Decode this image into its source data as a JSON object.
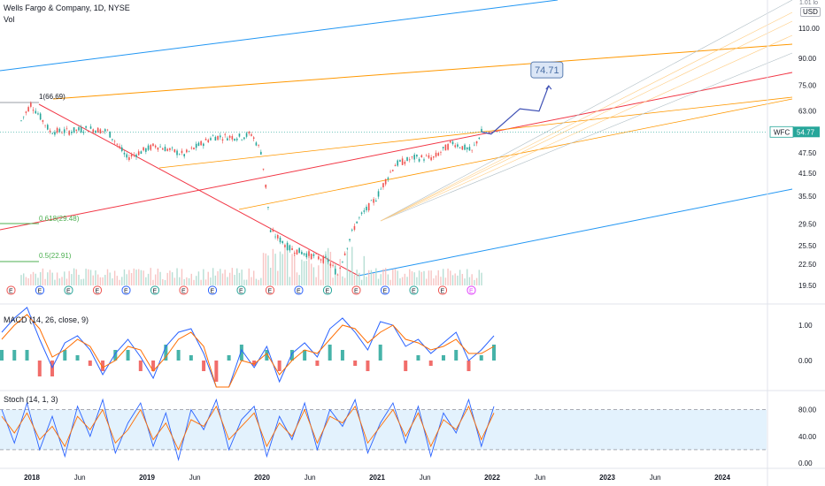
{
  "header": {
    "symbol_title": "Wells Fargo & Company, 1D, NYSE",
    "volume_label": "Vol",
    "log_label": "1.01 lo",
    "currency": "USD"
  },
  "ticker_tag": {
    "symbol": "WFC",
    "price": "54.77"
  },
  "target_label": "74.71",
  "annotations": {
    "peak_fib": "1(66.69)",
    "fib_618": "0.618(29.48)",
    "fib_5": "0.5(22.91)"
  },
  "indicators": {
    "macd_label": "MACD (14, 26, close, 9)",
    "stoch_label": "Stoch (14, 1, 3)"
  },
  "earnings_marker": "E",
  "colors": {
    "up_candle": "#26a69a",
    "down_candle": "#ef5350",
    "macd_line": "#2962ff",
    "signal_line": "#ff6d00",
    "channel_blue": "#2196f3",
    "channel_orange": "#ff9800",
    "channel_red": "#f23645",
    "fib_green": "#4caf50",
    "stoch_band": "#e3f2fd"
  },
  "chart_data": [
    {
      "type": "line",
      "title": "Wells Fargo & Company, 1D, NYSE",
      "scale": "log",
      "y_ticks": [
        "110.00",
        "90.00",
        "75.00",
        "63.00",
        "54.77",
        "47.50",
        "41.50",
        "35.50",
        "29.50",
        "25.50",
        "22.50",
        "19.50"
      ],
      "x_ticks": [
        "2018",
        "Jun",
        "2019",
        "Jun",
        "2020",
        "Jun",
        "2021",
        "Jun",
        "2022",
        "Jun",
        "2023",
        "Jun",
        "2024"
      ],
      "series": [
        {
          "name": "WFC",
          "x": [
            "2018-01",
            "2018-02",
            "2018-04",
            "2018-06",
            "2018-08",
            "2018-10",
            "2018-12",
            "2019-03",
            "2019-06",
            "2019-09",
            "2019-12",
            "2020-01",
            "2020-02",
            "2020-03",
            "2020-05",
            "2020-07",
            "2020-09",
            "2020-10",
            "2020-12",
            "2021-02",
            "2021-04",
            "2021-06",
            "2021-08",
            "2021-10",
            "2021-12",
            "2022-01"
          ],
          "values": [
            59,
            66,
            55,
            55,
            56,
            55,
            46,
            50,
            47,
            53,
            53,
            54,
            48,
            28,
            25,
            24,
            23,
            21,
            30,
            35,
            44,
            46,
            46,
            51,
            48,
            54.77
          ]
        },
        {
          "name": "projection",
          "x": [
            "2022-01",
            "2022-02",
            "2022-05",
            "2022-07",
            "2022-08"
          ],
          "values": [
            54.77,
            54,
            64,
            63,
            74.71
          ]
        }
      ]
    },
    {
      "type": "line",
      "title": "MACD (14, 26, close, 9)",
      "y_ticks": [
        "1.00",
        "0.00"
      ],
      "series": [
        {
          "name": "MACD",
          "values": [
            0.8,
            1.2,
            1.5,
            0.6,
            -0.2,
            0.5,
            0.7,
            0.3,
            -0.4,
            0.2,
            0.6,
            0.1,
            -0.5,
            0.4,
            0.8,
            0.9,
            0.2,
            -1.2,
            -0.8,
            0.3,
            -0.2,
            0.4,
            -0.6,
            0.2,
            0.5,
            0.1,
            0.9,
            1.2,
            0.8,
            0.3,
            1.1,
            1.0,
            0.4,
            0.6,
            0.2,
            0.5,
            0.8,
            0.0,
            0.3,
            0.7
          ]
        },
        {
          "name": "Signal",
          "values": [
            0.6,
            1.0,
            1.3,
            0.9,
            0.1,
            0.3,
            0.6,
            0.4,
            -0.2,
            0.0,
            0.4,
            0.3,
            -0.3,
            0.1,
            0.6,
            0.8,
            0.4,
            -0.8,
            -0.9,
            0.0,
            -0.1,
            0.2,
            -0.4,
            0.0,
            0.3,
            0.2,
            0.6,
            1.0,
            0.9,
            0.5,
            0.8,
            1.0,
            0.6,
            0.5,
            0.3,
            0.4,
            0.6,
            0.2,
            0.2,
            0.4
          ]
        }
      ]
    },
    {
      "type": "line",
      "title": "Stoch (14, 1, 3)",
      "y_ticks": [
        "80.00",
        "40.00",
        "0.00"
      ],
      "series": [
        {
          "name": "%K",
          "values": [
            80,
            30,
            90,
            20,
            70,
            10,
            85,
            40,
            95,
            15,
            60,
            90,
            25,
            75,
            5,
            80,
            50,
            95,
            20,
            65,
            85,
            10,
            70,
            35,
            90,
            20,
            80,
            55,
            95,
            15,
            60,
            90,
            30,
            85,
            10,
            75,
            45,
            95,
            25,
            85
          ]
        },
        {
          "name": "%D",
          "values": [
            70,
            45,
            75,
            35,
            55,
            25,
            70,
            50,
            80,
            30,
            50,
            80,
            35,
            60,
            20,
            65,
            55,
            85,
            35,
            55,
            75,
            25,
            60,
            40,
            80,
            30,
            70,
            60,
            85,
            30,
            55,
            80,
            40,
            75,
            25,
            65,
            50,
            85,
            35,
            75
          ]
        }
      ]
    }
  ]
}
